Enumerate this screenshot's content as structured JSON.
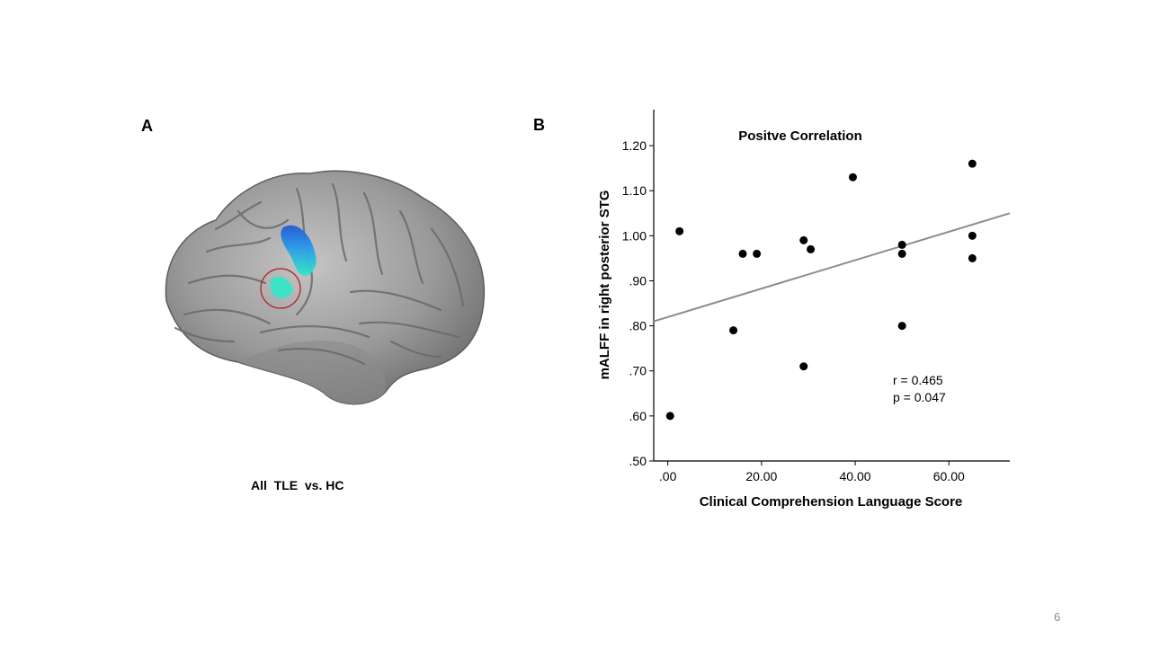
{
  "slide": {
    "label_a": "A",
    "label_b": "B",
    "brain_caption": "All  TLE  vs. HC",
    "slide_number": "6"
  },
  "colors": {
    "point": "#000000",
    "fit_line": "#8c8c8c",
    "axis": "#000000",
    "brain_surface": "#9a9a9a",
    "highlight_blue": "#1e5ad8",
    "highlight_cyan": "#2fe8c8",
    "circle": "#b02020"
  },
  "chart_data": {
    "type": "scatter",
    "title": "Positve Correlation",
    "xlabel": "Clinical Comprehension Language Score",
    "ylabel": "mALFF in right posterior STG",
    "xlim": [
      -3,
      73
    ],
    "ylim": [
      0.5,
      1.28
    ],
    "x_ticks": [
      0,
      20,
      40,
      60
    ],
    "x_tick_labels": [
      ".00",
      "20.00",
      "40.00",
      "60.00"
    ],
    "y_ticks": [
      0.5,
      0.6,
      0.7,
      0.8,
      0.9,
      1.0,
      1.1,
      1.2
    ],
    "y_tick_labels": [
      ".50",
      ".60",
      ".70",
      ".80",
      ".90",
      "1.00",
      "1.10",
      "1.20"
    ],
    "points": [
      {
        "x": 0.5,
        "y": 0.6
      },
      {
        "x": 2.5,
        "y": 1.01
      },
      {
        "x": 14,
        "y": 0.79
      },
      {
        "x": 16,
        "y": 0.96
      },
      {
        "x": 19,
        "y": 0.96
      },
      {
        "x": 29,
        "y": 0.71
      },
      {
        "x": 29,
        "y": 0.99
      },
      {
        "x": 30.5,
        "y": 0.97
      },
      {
        "x": 39.5,
        "y": 1.13
      },
      {
        "x": 50,
        "y": 0.98
      },
      {
        "x": 50,
        "y": 0.96
      },
      {
        "x": 50,
        "y": 0.8
      },
      {
        "x": 65,
        "y": 1.16
      },
      {
        "x": 65,
        "y": 1.0
      },
      {
        "x": 65,
        "y": 0.95
      }
    ],
    "fit_line": {
      "x": [
        -3,
        73
      ],
      "y": [
        0.81,
        1.05
      ]
    },
    "annotations": [
      "r = 0.465",
      "p = 0.047"
    ],
    "grid": false,
    "legend": false
  }
}
